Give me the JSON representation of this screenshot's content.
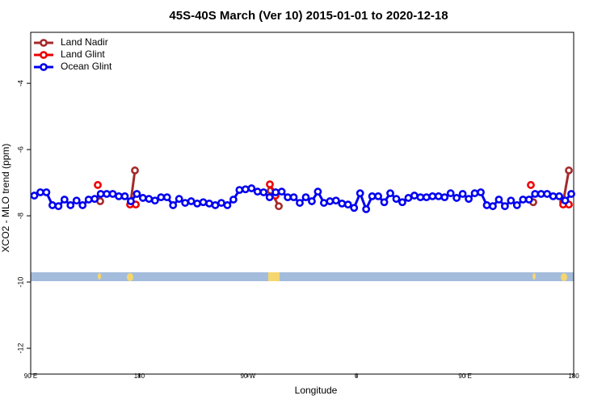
{
  "chart_data": {
    "type": "line",
    "title": "45S-40S March (Ver 10)   2015-01-01 to 2020-12-18",
    "x_label": "Longitude",
    "y_label": "XCO2 - MLO trend (ppm)",
    "xlim": [
      90,
      540
    ],
    "ylim": [
      -12.78,
      -2.46
    ],
    "xticks": [
      {
        "value": 90,
        "label": "90 E"
      },
      180,
      {
        "value": 270,
        "label": "90 W"
      },
      {
        "value": 360,
        "label": "0"
      },
      {
        "value": 450,
        "label": "90 E"
      },
      {
        "value": 540,
        "label": "180"
      }
    ],
    "yticks": [
      -12,
      -10,
      -8,
      -6,
      -4
    ],
    "grid": false,
    "legend": "top-left",
    "series": [
      {
        "name": "Land Nadir",
        "color": "#a52a2a",
        "x": [
          147.6,
          null,
          173.0,
          176.4,
          null,
          288.9,
          295.6,
          null,
          506.5,
          null,
          531.3,
          536.0
        ],
        "values": [
          -7.56,
          null,
          -7.56,
          -6.63,
          null,
          -7.24,
          -7.71,
          null,
          -7.59,
          null,
          -7.59,
          -6.63
        ]
      },
      {
        "name": "Land Glint",
        "color": "#ee0000",
        "x": [
          145.6,
          null,
          172.4,
          177.1,
          null,
          288.2,
          292.9,
          null,
          504.5,
          null,
          531.3,
          536.0
        ],
        "values": [
          -7.07,
          null,
          -7.66,
          -7.66,
          null,
          -7.05,
          -7.39,
          null,
          -7.07,
          null,
          -7.66,
          -7.66
        ]
      },
      {
        "name": "Ocean Glint",
        "color": "#0000ee",
        "x": [
          93,
          98,
          103,
          108,
          113,
          118,
          123,
          128,
          133,
          138,
          143,
          148,
          153,
          158,
          163,
          168,
          173,
          178,
          183,
          188,
          193,
          198,
          203,
          208,
          213,
          218,
          223,
          228,
          233,
          238,
          243,
          248,
          253,
          258,
          263,
          268,
          273,
          278,
          283,
          288,
          293,
          298,
          303,
          308,
          313,
          318,
          323,
          328,
          333,
          338,
          343,
          348,
          353,
          358,
          363,
          368,
          373,
          378,
          383,
          388,
          393,
          398,
          403,
          408,
          413,
          418,
          423,
          428,
          433,
          438,
          443,
          448,
          453,
          458,
          463,
          468,
          473,
          478,
          483,
          488,
          493,
          498,
          503,
          508,
          513,
          518,
          523,
          528,
          533,
          538
        ],
        "values": [
          -7.39,
          -7.29,
          -7.29,
          -7.68,
          -7.71,
          -7.51,
          -7.68,
          -7.54,
          -7.68,
          -7.51,
          -7.49,
          -7.34,
          -7.34,
          -7.34,
          -7.41,
          -7.41,
          -7.56,
          -7.34,
          -7.46,
          -7.49,
          -7.54,
          -7.44,
          -7.44,
          -7.68,
          -7.49,
          -7.61,
          -7.56,
          -7.63,
          -7.59,
          -7.63,
          -7.68,
          -7.61,
          -7.68,
          -7.51,
          -7.22,
          -7.2,
          -7.17,
          -7.27,
          -7.29,
          -7.44,
          -7.29,
          -7.27,
          -7.44,
          -7.44,
          -7.61,
          -7.44,
          -7.56,
          -7.27,
          -7.61,
          -7.56,
          -7.54,
          -7.63,
          -7.66,
          -7.76,
          -7.32,
          -7.8,
          -7.41,
          -7.41,
          -7.59,
          -7.32,
          -7.49,
          -7.59,
          -7.46,
          -7.39,
          -7.44,
          -7.44,
          -7.41,
          -7.41,
          -7.44,
          -7.32,
          -7.46,
          -7.34,
          -7.49,
          -7.32,
          -7.29,
          -7.68,
          -7.71,
          -7.51,
          -7.71,
          -7.54,
          -7.68,
          -7.51,
          -7.51,
          -7.34,
          -7.34,
          -7.34,
          -7.41,
          -7.41,
          -7.54,
          -7.34
        ]
      }
    ]
  }
}
